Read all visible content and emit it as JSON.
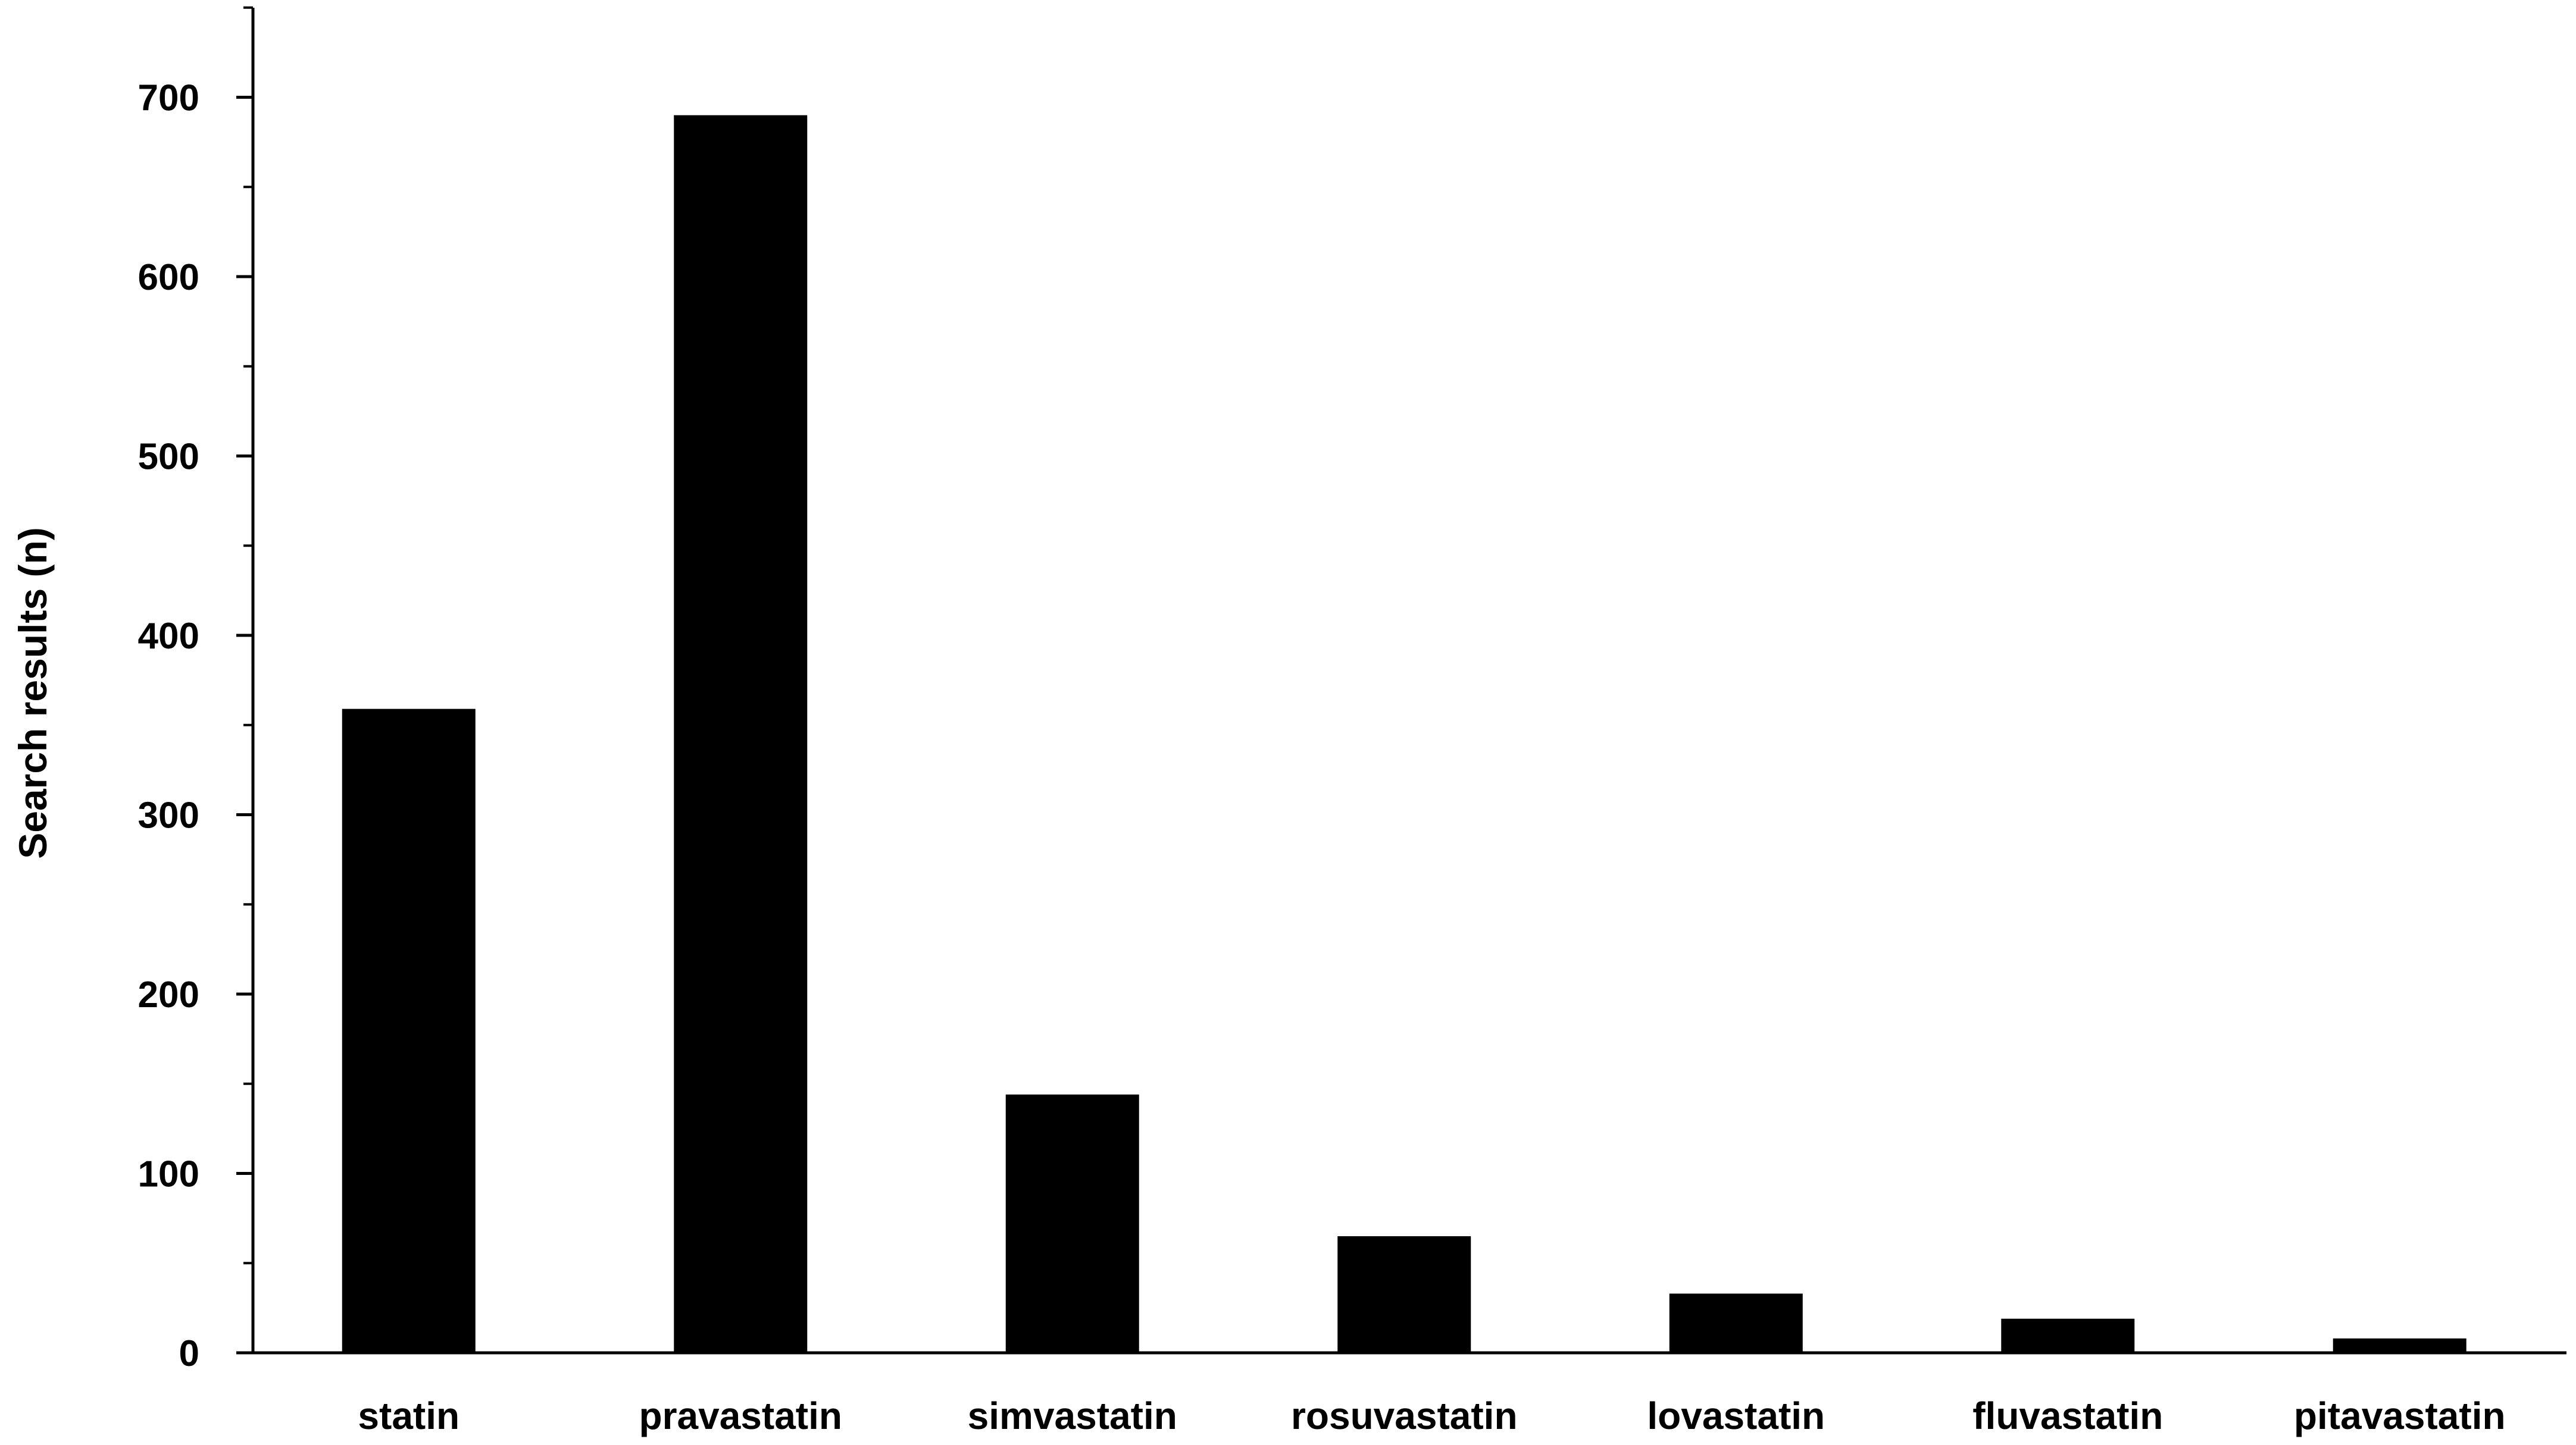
{
  "chart_data": {
    "type": "bar",
    "title": "",
    "xlabel": "",
    "ylabel": "Search results (n)",
    "categories": [
      "statin",
      "pravastatin",
      "simvastatin",
      "rosuvastatin",
      "lovastatin",
      "fluvastatin",
      "pitavastatin"
    ],
    "values": [
      359,
      690,
      144,
      65,
      33,
      19,
      8
    ],
    "ylim": [
      0,
      750
    ],
    "yticks": [
      0,
      100,
      200,
      300,
      400,
      500,
      600,
      700
    ],
    "minor_tick_step": 50,
    "grid": false,
    "legend": "none",
    "bar_color": "#000000"
  }
}
